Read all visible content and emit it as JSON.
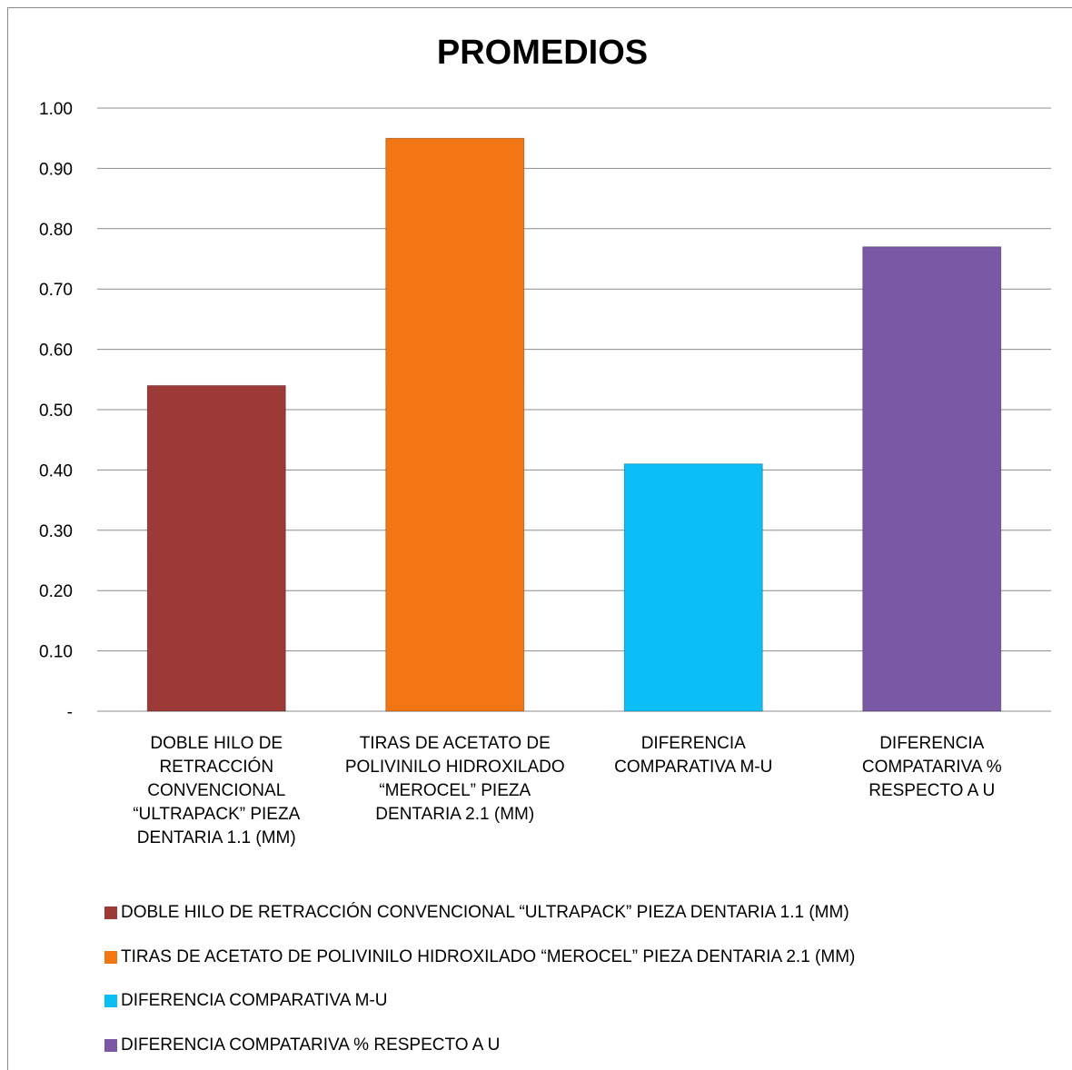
{
  "chart_data": {
    "type": "bar",
    "title": "PROMEDIOS",
    "categories": [
      "DOBLE HILO DE RETRACCIÓN CONVENCIONAL “ULTRAPACK” PIEZA DENTARIA 1.1 (MM)",
      "TIRAS DE ACETATO DE POLIVINILO HIDROXILADO “MEROCEL” PIEZA DENTARIA 2.1 (MM)",
      "DIFERENCIA COMPARATIVA M-U",
      "DIFERENCIA COMPATARIVA % RESPECTO A U"
    ],
    "values": [
      0.54,
      0.95,
      0.41,
      0.77
    ],
    "colors": [
      "#9c3a38",
      "#f27613",
      "#0bbef5",
      "#7b58a6"
    ],
    "ylim": [
      0,
      1
    ],
    "yticks": [
      {
        "value": 0,
        "label": "-"
      },
      {
        "value": 0.1,
        "label": "0.10"
      },
      {
        "value": 0.2,
        "label": "0.20"
      },
      {
        "value": 0.3,
        "label": "0.30"
      },
      {
        "value": 0.4,
        "label": "0.40"
      },
      {
        "value": 0.5,
        "label": "0.50"
      },
      {
        "value": 0.6,
        "label": "0.60"
      },
      {
        "value": 0.7,
        "label": "0.70"
      },
      {
        "value": 0.8,
        "label": "0.80"
      },
      {
        "value": 0.9,
        "label": "0.90"
      },
      {
        "value": 1,
        "label": "1.00"
      }
    ],
    "grid": true,
    "legend": "bottom"
  }
}
